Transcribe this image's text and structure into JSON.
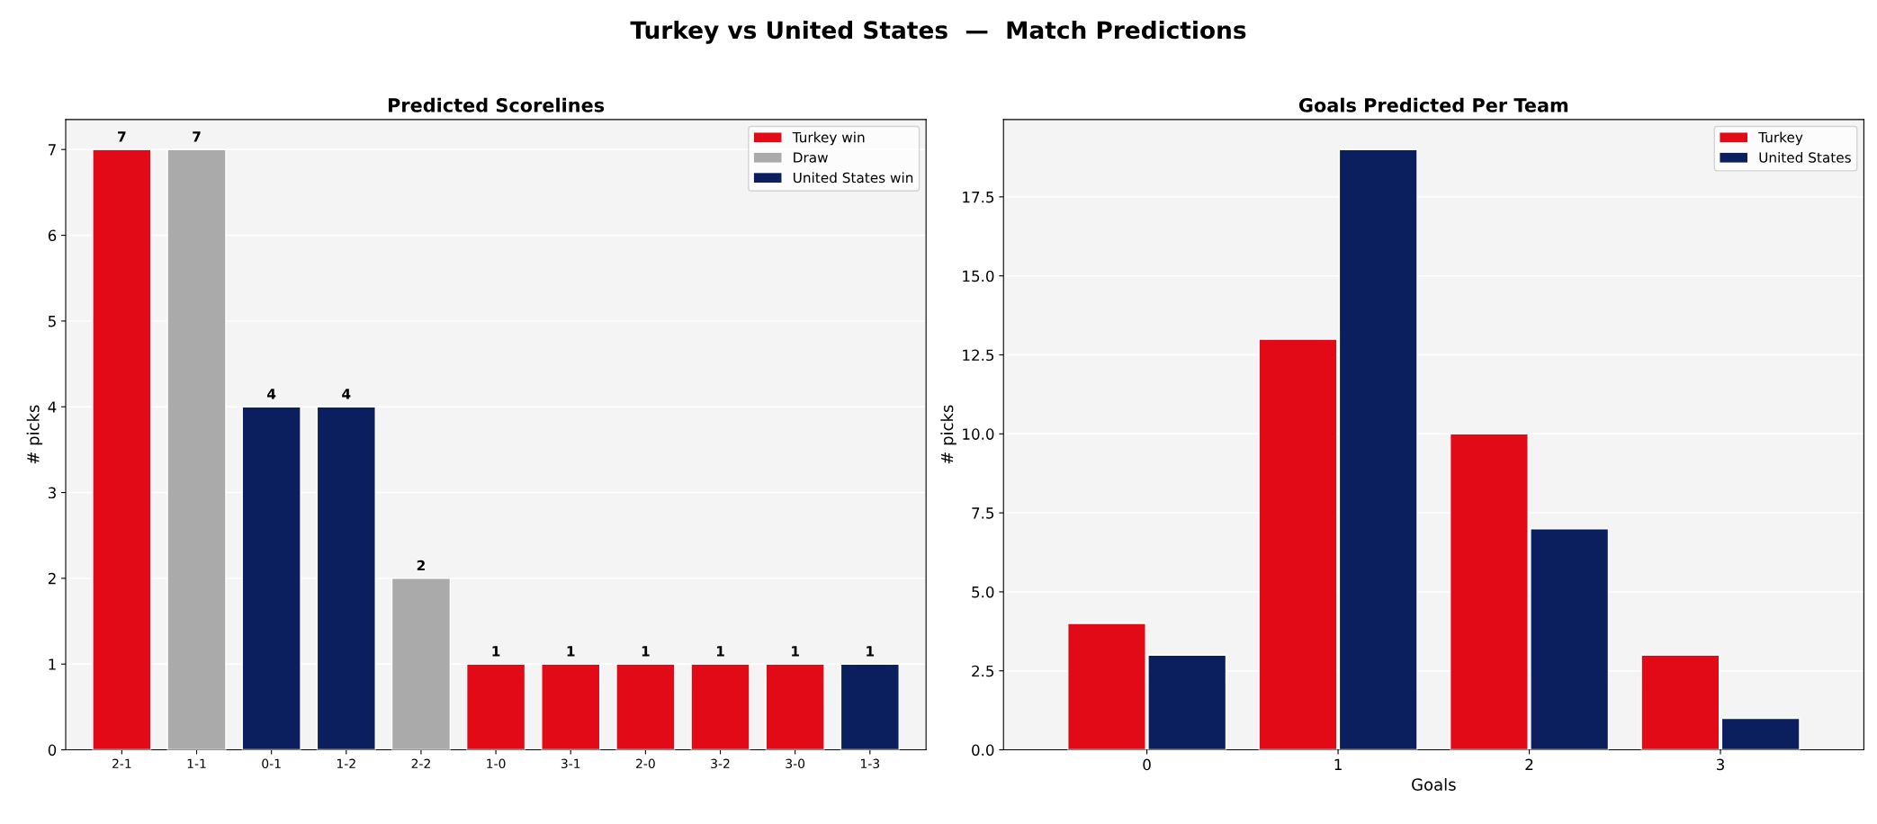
{
  "chart_data": [
    {
      "type": "bar",
      "title": "Predicted Scorelines",
      "ylabel": "# picks",
      "annotations": [
        "Turkey vs United States  —  Match Predictions"
      ],
      "categories": [
        "2-1",
        "1-1",
        "0-1",
        "1-2",
        "2-2",
        "1-0",
        "3-1",
        "2-0",
        "3-2",
        "3-0",
        "1-3"
      ],
      "stacked": true,
      "series": [
        {
          "name": "Turkey win",
          "color": "#e30a17",
          "values": [
            7,
            null,
            null,
            null,
            null,
            1,
            1,
            1,
            1,
            1,
            null
          ]
        },
        {
          "name": "Draw",
          "color": "#aaaaaa",
          "values": [
            null,
            7,
            null,
            null,
            2,
            null,
            null,
            null,
            null,
            null,
            null
          ]
        },
        {
          "name": "United States win",
          "color": "#0b1f5e",
          "values": [
            null,
            null,
            4,
            4,
            null,
            null,
            null,
            null,
            null,
            null,
            1
          ]
        }
      ],
      "ylim": [
        0,
        7.35
      ],
      "yticks": [
        0,
        1,
        2,
        3,
        4,
        5,
        6,
        7
      ],
      "grid": "y",
      "legend": "top right",
      "data_labels": true
    },
    {
      "type": "bar",
      "title": "Goals Predicted Per Team",
      "xlabel": "Goals",
      "ylabel": "# picks",
      "categories": [
        "0",
        "1",
        "2",
        "3"
      ],
      "series": [
        {
          "name": "Turkey",
          "color": "#e30a17",
          "values": [
            4,
            13,
            10,
            3
          ]
        },
        {
          "name": "United States",
          "color": "#0b1f5e",
          "values": [
            3,
            19,
            7,
            1
          ]
        }
      ],
      "ylim": [
        0,
        19.95
      ],
      "yticks": [
        {
          "value": 0,
          "label": "0.0"
        },
        {
          "value": 2.5,
          "label": "2.5"
        },
        {
          "value": 5,
          "label": "5.0"
        },
        {
          "value": 7.5,
          "label": "7.5"
        },
        {
          "value": 10,
          "label": "10.0"
        },
        {
          "value": 12.5,
          "label": "12.5"
        },
        {
          "value": 15,
          "label": "15.0"
        },
        {
          "value": 17.5,
          "label": "17.5"
        }
      ],
      "grid": "y",
      "legend": "top right"
    }
  ]
}
